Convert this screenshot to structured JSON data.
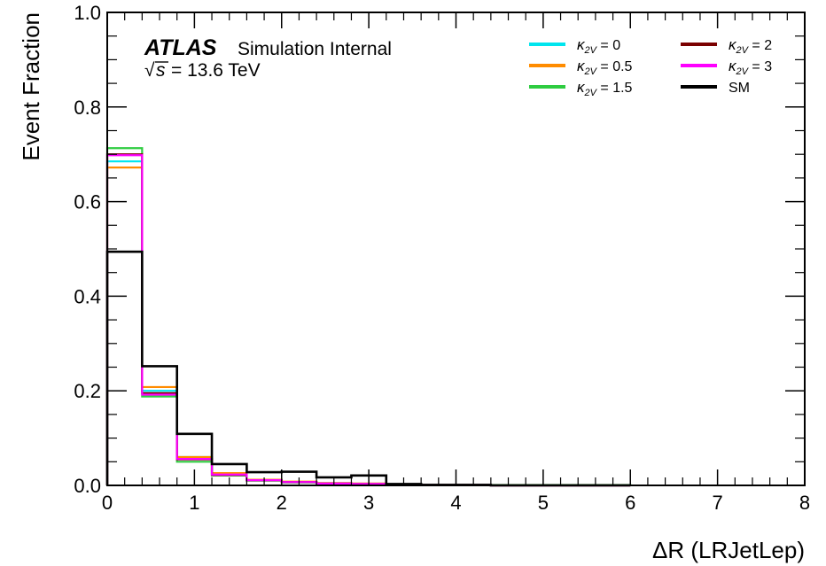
{
  "chart_data": {
    "type": "step-histogram",
    "title": "",
    "xlabel": "ΔR (LRJetLep)",
    "ylabel": "Event Fraction",
    "xlim": [
      0,
      8
    ],
    "ylim": [
      0,
      1.0
    ],
    "x_ticks": [
      "0",
      "1",
      "2",
      "3",
      "4",
      "5",
      "6",
      "7",
      "8"
    ],
    "y_ticks": [
      "0.0",
      "0.2",
      "0.4",
      "0.6",
      "0.8",
      "1.0"
    ],
    "bin_edges": [
      0,
      0.4,
      0.8,
      1.2,
      1.6,
      2.0,
      2.4,
      2.8,
      3.2,
      3.6,
      4.0,
      4.4,
      4.8,
      5.2,
      5.6,
      6.0
    ],
    "experiment": "ATLAS",
    "status": "Simulation Internal",
    "energy": "= 13.6 TeV",
    "legend_position": "top-right",
    "grid": false,
    "series": [
      {
        "name": "κ2V = 0",
        "kappa_value": "0",
        "color": "#00e5ee",
        "values": [
          0.685,
          0.2,
          0.06,
          0.025,
          0.012,
          0.007,
          0.004,
          0.003,
          0.002,
          0.001,
          0.001,
          0,
          0,
          0,
          0
        ]
      },
      {
        "name": "κ2V = 0.5",
        "kappa_value": "0.5",
        "color": "#ff8c00",
        "values": [
          0.672,
          0.208,
          0.06,
          0.026,
          0.012,
          0.008,
          0.005,
          0.004,
          0.002,
          0.001,
          0.001,
          0,
          0,
          0,
          0
        ]
      },
      {
        "name": "κ2V = 1.5",
        "kappa_value": "1.5",
        "color": "#2ecc40",
        "values": [
          0.713,
          0.188,
          0.05,
          0.021,
          0.01,
          0.006,
          0.004,
          0.003,
          0.002,
          0.001,
          0.001,
          0.001,
          0.001,
          0.001,
          0.001
        ]
      },
      {
        "name": "κ2V = 2",
        "kappa_value": "2",
        "color": "#7a0000",
        "values": [
          0.7,
          0.195,
          0.055,
          0.022,
          0.011,
          0.007,
          0.004,
          0.003,
          0.002,
          0.001,
          0.001,
          0,
          0,
          0,
          0
        ]
      },
      {
        "name": "κ2V = 3",
        "kappa_value": "3",
        "color": "#ff00ff",
        "values": [
          0.698,
          0.192,
          0.056,
          0.023,
          0.011,
          0.007,
          0.004,
          0.003,
          0.002,
          0.001,
          0.001,
          0,
          0,
          0,
          0
        ]
      },
      {
        "name": "SM",
        "kappa_value": "",
        "color": "#000000",
        "values": [
          0.494,
          0.252,
          0.109,
          0.045,
          0.028,
          0.029,
          0.017,
          0.021,
          0.003,
          0.001,
          0.001,
          0,
          0,
          0,
          0
        ]
      }
    ]
  }
}
